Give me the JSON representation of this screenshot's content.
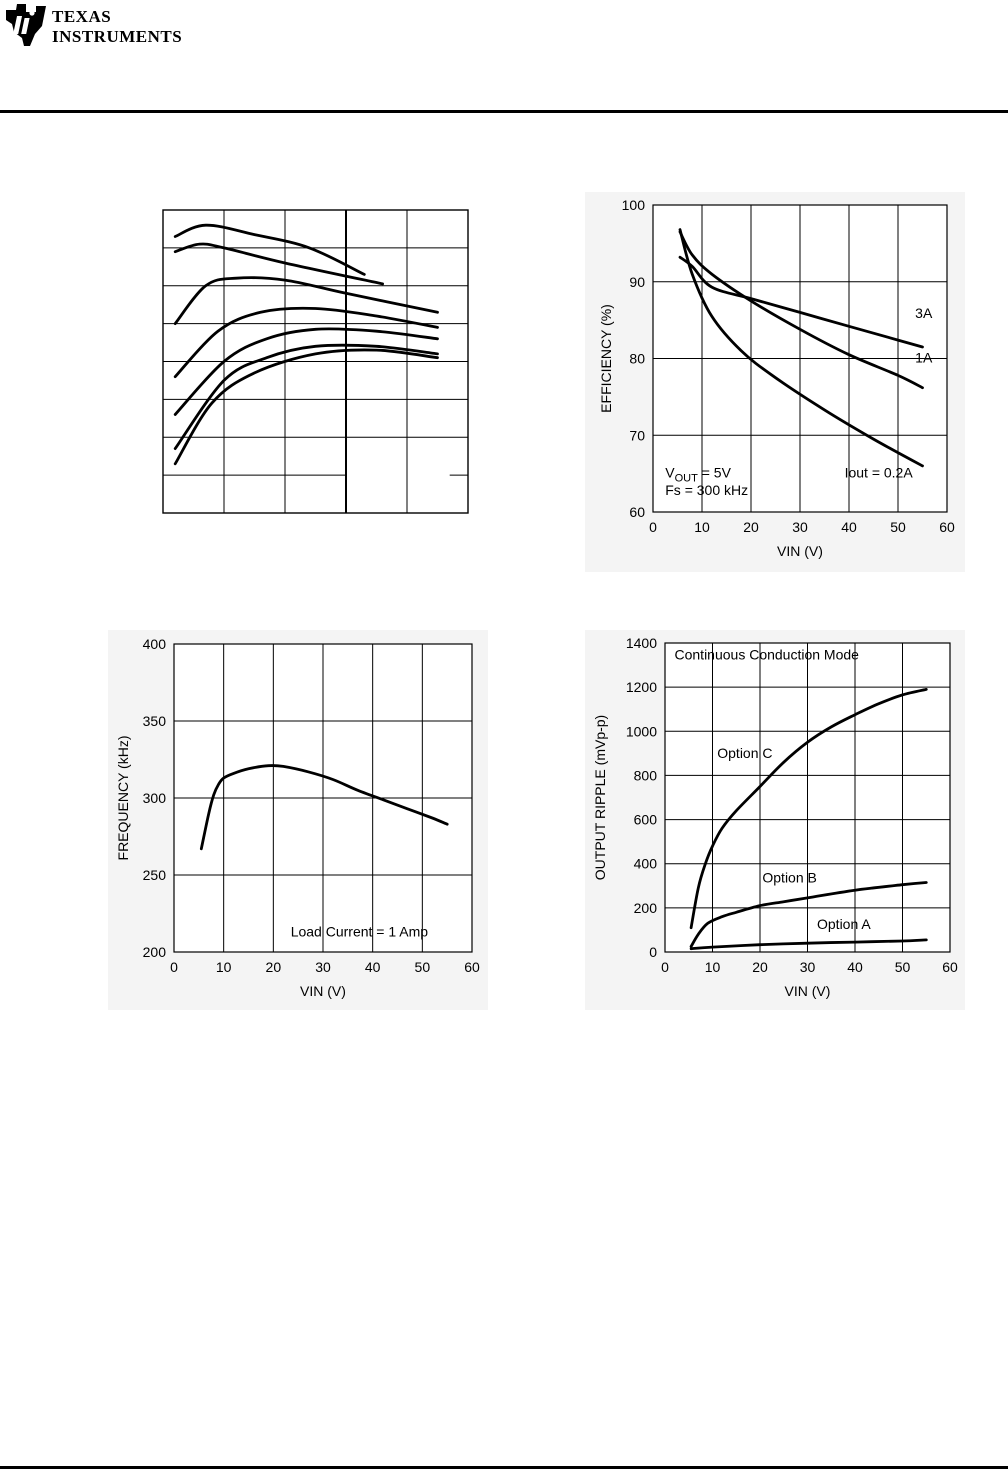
{
  "header": {
    "logo_line1": "TEXAS",
    "logo_line2": "INSTRUMENTS",
    "brand_color": "#000000"
  },
  "chart_data": [
    {
      "id": "chart-top-left",
      "type": "line",
      "title": "",
      "xlabel": "",
      "ylabel": "",
      "xlim": [
        0,
        5
      ],
      "ylim": [
        0,
        8
      ],
      "grid": true,
      "note": "",
      "series": [
        {
          "x": [
            0.2,
            0.7,
            1.5,
            2.4,
            3.3
          ],
          "y": [
            7.3,
            7.6,
            7.35,
            7.0,
            6.3
          ]
        },
        {
          "x": [
            0.2,
            0.6,
            1.0,
            2.0,
            3.6
          ],
          "y": [
            6.9,
            7.1,
            7.0,
            6.6,
            6.05
          ]
        },
        {
          "x": [
            0.2,
            0.7,
            1.2,
            2.0,
            3.0,
            4.5
          ],
          "y": [
            5.0,
            6.0,
            6.2,
            6.15,
            5.8,
            5.3
          ]
        },
        {
          "x": [
            0.2,
            0.9,
            1.6,
            2.5,
            3.5,
            4.5
          ],
          "y": [
            3.6,
            4.8,
            5.3,
            5.4,
            5.2,
            4.9
          ]
        },
        {
          "x": [
            0.2,
            1.0,
            1.7,
            2.5,
            3.5,
            4.5
          ],
          "y": [
            2.6,
            4.0,
            4.6,
            4.85,
            4.8,
            4.6
          ]
        },
        {
          "x": [
            0.2,
            1.0,
            1.7,
            2.5,
            3.5,
            4.5
          ],
          "y": [
            1.7,
            3.5,
            4.1,
            4.4,
            4.4,
            4.2
          ]
        },
        {
          "x": [
            0.2,
            0.8,
            1.5,
            2.5,
            3.5,
            4.5
          ],
          "y": [
            1.3,
            2.9,
            3.7,
            4.2,
            4.3,
            4.1
          ]
        }
      ]
    },
    {
      "id": "chart-efficiency",
      "type": "line",
      "title": "",
      "xlabel": "VIN (V)",
      "ylabel": "EFFICIENCY (%)",
      "xlim": [
        0,
        60
      ],
      "ylim": [
        60,
        100
      ],
      "xticks": [
        0,
        10,
        20,
        30,
        40,
        50,
        60
      ],
      "yticks": [
        60,
        70,
        80,
        90,
        100
      ],
      "grid": true,
      "annotation_vout_main": "V",
      "annotation_vout_sub": "OUT",
      "annotation_vout_rest": " = 5V",
      "annotation_fs": "Fs = 300 kHz",
      "series": [
        {
          "name": "3A",
          "x": [
            5.5,
            8,
            12,
            20,
            30,
            40,
            50,
            55
          ],
          "y": [
            93.2,
            92,
            89.3,
            87.8,
            86,
            84.2,
            82.4,
            81.5
          ]
        },
        {
          "name": "1A",
          "x": [
            5.5,
            8,
            12,
            20,
            30,
            40,
            50,
            55
          ],
          "y": [
            96.5,
            93.5,
            91,
            87.5,
            83.8,
            80.5,
            77.8,
            76.2
          ]
        },
        {
          "name": "Iout = 0.2A",
          "x": [
            5.5,
            8,
            12,
            18,
            25,
            35,
            45,
            55
          ],
          "y": [
            96.8,
            91,
            85.5,
            81,
            77.5,
            73.3,
            69.5,
            66
          ]
        }
      ]
    },
    {
      "id": "chart-frequency",
      "type": "line",
      "title": "",
      "xlabel": "VIN (V)",
      "ylabel": "FREQUENCY (kHz)",
      "xlim": [
        0,
        60
      ],
      "ylim": [
        200,
        400
      ],
      "xticks": [
        0,
        10,
        20,
        30,
        40,
        50,
        60
      ],
      "yticks": [
        200,
        250,
        300,
        350,
        400
      ],
      "grid": true,
      "annotation": "Load Current = 1 Amp",
      "series": [
        {
          "x": [
            5.5,
            7,
            8,
            9,
            10,
            12,
            15,
            19,
            22,
            27,
            32,
            37,
            42,
            47,
            52,
            55
          ],
          "y": [
            267,
            290,
            302,
            309,
            313,
            316,
            319,
            321,
            320.5,
            317,
            312,
            305,
            299,
            293,
            287,
            283
          ]
        }
      ]
    },
    {
      "id": "chart-ripple",
      "type": "line",
      "title": "",
      "xlabel": "VIN (V)",
      "ylabel": "OUTPUT RIPPLE (mVp-p)",
      "xlim": [
        0,
        60
      ],
      "ylim": [
        0,
        1400
      ],
      "xticks": [
        0,
        10,
        20,
        30,
        40,
        50,
        60
      ],
      "yticks": [
        0,
        200,
        400,
        600,
        800,
        1000,
        1200,
        1400
      ],
      "grid": true,
      "annotation": "Continuous Conduction Mode",
      "series": [
        {
          "name": "Option C",
          "x": [
            5.5,
            7,
            8.5,
            10,
            12,
            15,
            20,
            25,
            30,
            35,
            40,
            45,
            50,
            55
          ],
          "y": [
            110,
            290,
            400,
            480,
            560,
            640,
            750,
            860,
            950,
            1020,
            1075,
            1125,
            1165,
            1190
          ]
        },
        {
          "name": "Option B",
          "x": [
            5.5,
            7,
            9,
            12,
            15,
            20,
            25,
            30,
            40,
            50,
            55
          ],
          "y": [
            25,
            80,
            130,
            160,
            180,
            210,
            228,
            245,
            280,
            305,
            315
          ]
        },
        {
          "name": "Option A",
          "x": [
            5.5,
            10,
            20,
            30,
            40,
            50,
            55
          ],
          "y": [
            15,
            22,
            33,
            40,
            45,
            50,
            55
          ]
        }
      ]
    }
  ]
}
